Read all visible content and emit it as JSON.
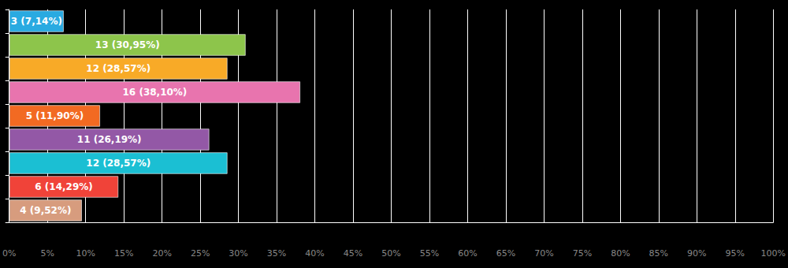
{
  "chart_data": {
    "type": "bar",
    "orientation": "horizontal",
    "categories": [
      null,
      null,
      null,
      null,
      null,
      null,
      null,
      null,
      null
    ],
    "values": [
      7.14,
      30.95,
      28.57,
      38.1,
      11.9,
      26.19,
      28.57,
      14.29,
      9.52
    ],
    "value_labels": [
      "3 (7,14%)",
      "13 (30,95%)",
      "12 (28,57%)",
      "16 (38,10%)",
      "5 (11,90%)",
      "11 (26,19%)",
      "12 (28,57%)",
      "6 (14,29%)",
      "4 (9,52%)"
    ],
    "colors": [
      "#29aae1",
      "#8dc54b",
      "#f8aa27",
      "#e874ae",
      "#f26a22",
      "#9358a6",
      "#1bbfd3",
      "#f04339",
      "#d79c7e"
    ],
    "xlim": [
      0,
      100
    ],
    "xticks": [
      {
        "value": 0,
        "label": "0%"
      },
      {
        "value": 5,
        "label": "5%"
      },
      {
        "value": 10,
        "label": "10%"
      },
      {
        "value": 15,
        "label": "15%"
      },
      {
        "value": 20,
        "label": "20%"
      },
      {
        "value": 25,
        "label": "25%"
      },
      {
        "value": 30,
        "label": "30%"
      },
      {
        "value": 35,
        "label": "35%"
      },
      {
        "value": 40,
        "label": "40%"
      },
      {
        "value": 45,
        "label": "45%"
      },
      {
        "value": 50,
        "label": "50%"
      },
      {
        "value": 55,
        "label": "55%"
      },
      {
        "value": 60,
        "label": "60%"
      },
      {
        "value": 65,
        "label": "65%"
      },
      {
        "value": 70,
        "label": "70%"
      },
      {
        "value": 75,
        "label": "75%"
      },
      {
        "value": 80,
        "label": "80%"
      },
      {
        "value": 85,
        "label": "85%"
      },
      {
        "value": 90,
        "label": "90%"
      },
      {
        "value": 95,
        "label": "95%"
      },
      {
        "value": 100,
        "label": "100%"
      }
    ],
    "grid": true,
    "data_labels": true,
    "tick_labels": "x"
  }
}
